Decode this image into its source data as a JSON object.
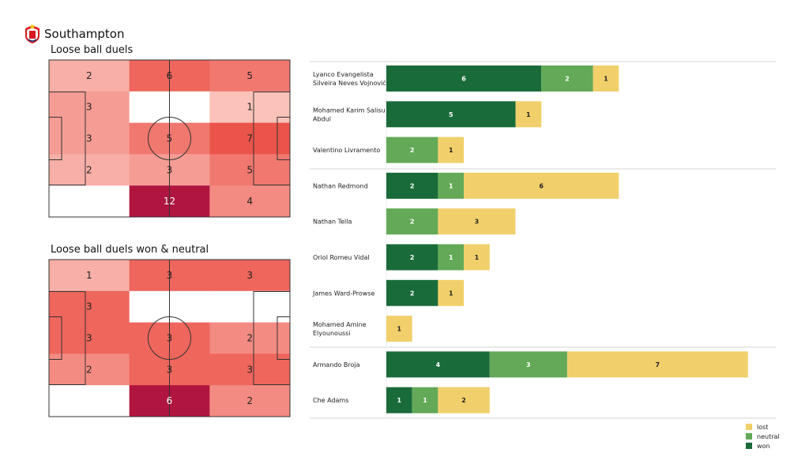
{
  "header": {
    "team": "Southampton"
  },
  "colors": {
    "won": "#1a6b3a",
    "neutral": "#63a957",
    "lost": "#f1d06b",
    "separator": "#c8c8c8"
  },
  "chart_data": [
    {
      "type": "heatmap",
      "title": "Loose ball duels",
      "rows": 5,
      "cols": 3,
      "values": [
        [
          2,
          6,
          5
        ],
        [
          3,
          0,
          1
        ],
        [
          3,
          5,
          7
        ],
        [
          2,
          3,
          5
        ],
        [
          0,
          12,
          4
        ]
      ],
      "labels": [
        [
          "2",
          "6",
          "5"
        ],
        [
          "3",
          "",
          "1"
        ],
        [
          "3",
          "5",
          "7"
        ],
        [
          "2",
          "3",
          "5"
        ],
        [
          "",
          "12",
          "4"
        ]
      ],
      "max": 12
    },
    {
      "type": "heatmap",
      "title": "Loose ball duels won & neutral",
      "rows": 5,
      "cols": 3,
      "values": [
        [
          1,
          3,
          3
        ],
        [
          3,
          0,
          0
        ],
        [
          3,
          3,
          2
        ],
        [
          2,
          3,
          3
        ],
        [
          0,
          6,
          2
        ]
      ],
      "labels": [
        [
          "1",
          "3",
          "3"
        ],
        [
          "3",
          "",
          ""
        ],
        [
          "3",
          "3",
          "2"
        ],
        [
          "2",
          "3",
          "3"
        ],
        [
          "",
          "6",
          "2"
        ]
      ],
      "max": 6
    },
    {
      "type": "bar",
      "orientation": "horizontal",
      "stacked": true,
      "categories": [
        [
          "Lyanco Evangelista",
          "Silveira Neves Vojnović"
        ],
        [
          "Mohamed Karim Salisu",
          "Abdul"
        ],
        [
          "Valentino Livramento"
        ],
        [
          "Nathan Redmond"
        ],
        [
          "Nathan Tella"
        ],
        [
          "Oriol Romeu Vidal"
        ],
        [
          "James  Ward-Prowse"
        ],
        [
          "Mohamed Amine",
          "Elyounoussi"
        ],
        [
          "Armando Broja"
        ],
        [
          "Che Adams"
        ]
      ],
      "series": [
        {
          "name": "won",
          "values": [
            6,
            5,
            0,
            2,
            0,
            2,
            2,
            0,
            4,
            1
          ]
        },
        {
          "name": "neutral",
          "values": [
            2,
            0,
            2,
            1,
            2,
            1,
            0,
            0,
            3,
            1
          ]
        },
        {
          "name": "lost",
          "values": [
            1,
            1,
            1,
            6,
            3,
            1,
            1,
            1,
            7,
            2
          ]
        }
      ],
      "groups": [
        [
          0,
          1,
          2
        ],
        [
          3,
          4,
          5,
          6,
          7
        ],
        [
          8,
          9
        ]
      ],
      "legend": {
        "position": "bottom-right",
        "entries": [
          "lost",
          "neutral",
          "won"
        ]
      }
    }
  ]
}
